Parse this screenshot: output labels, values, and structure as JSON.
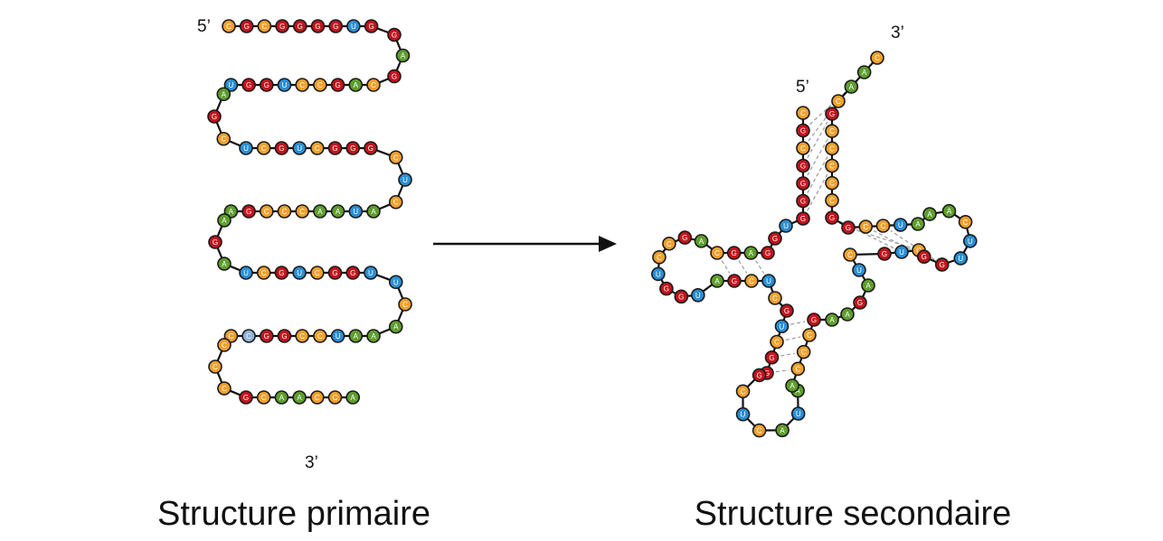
{
  "colors": {
    "A": "#5e9e2c",
    "G": "#c4131c",
    "U": "#2a8fd4",
    "C": "#f0a02b",
    "modified": "#8fb1d6",
    "backbone": "#111111",
    "pair_line": "#9a9a9a"
  },
  "primary": {
    "caption": "Structure primaire",
    "five_prime": "5’",
    "three_prime": "3’",
    "sequence": [
      "C",
      "G",
      "C",
      "G",
      "G",
      "G",
      "G",
      "U",
      "G",
      "G",
      "A",
      "G",
      "C",
      "A",
      "G",
      "C",
      "C",
      "U",
      "G",
      "G",
      "U",
      "A",
      "G",
      "C",
      "U",
      "C",
      "G",
      "U",
      "C",
      "G",
      "G",
      "G",
      "C",
      "U",
      "C",
      "A",
      "U",
      "A",
      "A",
      "C",
      "C",
      "C",
      "G",
      "A",
      "A",
      "G",
      "A",
      "U",
      "C",
      "G",
      "U",
      "C",
      "G",
      "G",
      "U",
      "U",
      "C",
      "A",
      "A",
      "A",
      "U",
      "C",
      "C",
      "G",
      "G",
      "C",
      "C",
      "C",
      "C",
      "C",
      "G",
      "C",
      "A",
      "A",
      "C",
      "C",
      "A"
    ],
    "modified_positions": [
      65
    ]
  },
  "secondary": {
    "caption": "Structure secondaire",
    "five_prime": "5’",
    "three_prime": "3’",
    "sequence": [
      "C",
      "G",
      "C",
      "G",
      "G",
      "G",
      "G",
      "U",
      "G",
      "G",
      "A",
      "G",
      "C",
      "A",
      "G",
      "C",
      "C",
      "U",
      "G",
      "G",
      "U",
      "A",
      "G",
      "C",
      "U",
      "C",
      "G",
      "U",
      "C",
      "G",
      "G",
      "G",
      "C",
      "U",
      "C",
      "A",
      "U",
      "A",
      "A",
      "C",
      "C",
      "C",
      "G",
      "A",
      "A",
      "G",
      "A",
      "U",
      "C",
      "G",
      "U",
      "C",
      "G",
      "G",
      "U",
      "U",
      "C",
      "A",
      "A",
      "A",
      "U",
      "C",
      "C",
      "G",
      "G",
      "C",
      "C",
      "C",
      "C",
      "C",
      "G",
      "C",
      "A",
      "A",
      "C",
      "C",
      "A"
    ]
  },
  "arrow": {
    "direction": "right"
  }
}
